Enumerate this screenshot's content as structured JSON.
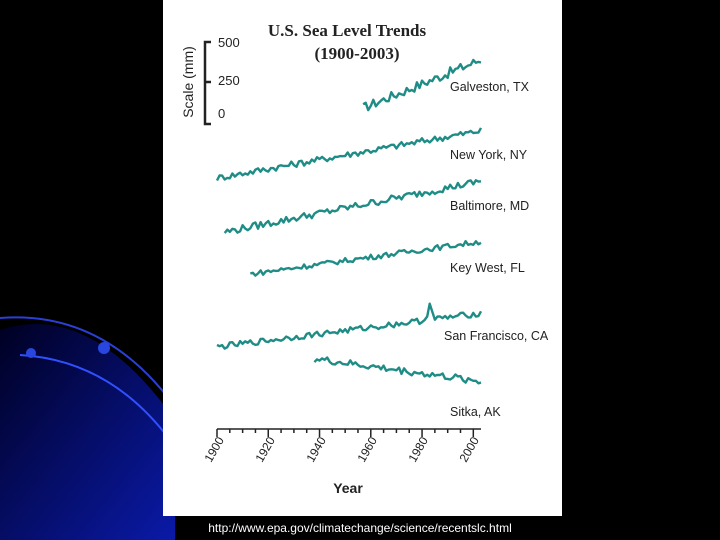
{
  "source_url": "http://www.epa.gov/climatechange/science/recentslc.html",
  "chart_data": {
    "type": "line",
    "title": "U.S. Sea Level Trends",
    "subtitle": "(1900-2003)",
    "xlabel": "Year",
    "scale_label": "Scale (mm)",
    "scale_ticks": [
      "500",
      "250",
      "0"
    ],
    "x_ticks": [
      "1900",
      "1920",
      "1940",
      "1960",
      "1980",
      "2000"
    ],
    "xlim": [
      1900,
      2003
    ],
    "color": "#1f8c86",
    "series": [
      {
        "name": "Galveston, TX",
        "start": 1957,
        "trend_mm_per_yr": 6.4,
        "noise_mm": 30,
        "spike_year": null,
        "spike_mm": 0
      },
      {
        "name": "New York, NY",
        "start": 1900,
        "trend_mm_per_yr": 2.8,
        "noise_mm": 20,
        "spike_year": null,
        "spike_mm": 0
      },
      {
        "name": "Baltimore, MD",
        "start": 1903,
        "trend_mm_per_yr": 3.1,
        "noise_mm": 22,
        "spike_year": null,
        "spike_mm": 0
      },
      {
        "name": "Key West, FL",
        "start": 1913,
        "trend_mm_per_yr": 2.2,
        "noise_mm": 16,
        "spike_year": null,
        "spike_mm": 0
      },
      {
        "name": "San Francisco, CA",
        "start": 1900,
        "trend_mm_per_yr": 2.0,
        "noise_mm": 18,
        "spike_year": 1983,
        "spike_mm": 110
      },
      {
        "name": "Sitka, AK",
        "start": 1938,
        "trend_mm_per_yr": -2.1,
        "noise_mm": 22,
        "spike_year": null,
        "spike_mm": 0
      }
    ]
  }
}
